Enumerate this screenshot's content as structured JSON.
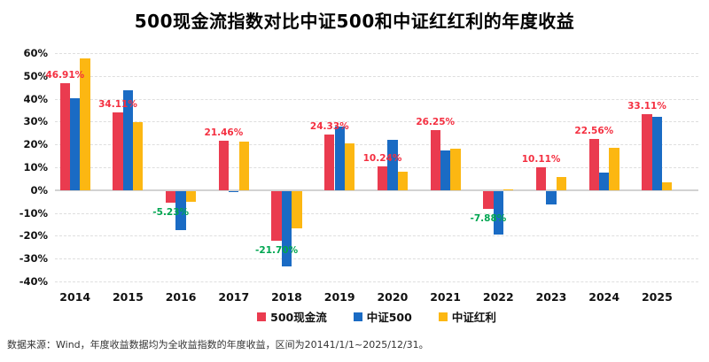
{
  "footnote": "数据来源：Wind，年度收益数据均为全收益指数的年度收益，区间为20141/1/1~2025/12/31。",
  "chart_data": {
    "type": "bar",
    "title": "500现金流指数对比中证500和中证红红利的年度收益",
    "categories": [
      "2014",
      "2015",
      "2016",
      "2017",
      "2018",
      "2019",
      "2020",
      "2021",
      "2022",
      "2023",
      "2024",
      "2025"
    ],
    "series": [
      {
        "name": "500现金流",
        "color": "#ea3b4f",
        "values": [
          46.91,
          34.11,
          -5.23,
          21.46,
          -21.7,
          24.33,
          10.24,
          26.25,
          -7.88,
          10.11,
          22.56,
          33.11
        ]
      },
      {
        "name": "中证500",
        "color": "#1a6bc4",
        "values": [
          40.3,
          43.9,
          -17.2,
          -0.2,
          -33.2,
          28.0,
          21.9,
          17.2,
          -19.0,
          -5.9,
          7.5,
          32.0
        ]
      },
      {
        "name": "中证红利",
        "color": "#fcb712",
        "values": [
          57.6,
          29.7,
          -4.9,
          21.3,
          -16.4,
          20.4,
          8.1,
          18.1,
          0.4,
          5.8,
          18.7,
          3.6
        ]
      }
    ],
    "value_labels": [
      "46.91%",
      "34.11%",
      "-5.23%",
      "21.46%",
      "-21.70%",
      "24.33%",
      "10.24%",
      "26.25%",
      "-7.88%",
      "10.11%",
      "22.56%",
      "33.11%"
    ],
    "value_label_series": 0,
    "label_color_up": "#f42f40",
    "label_color_down": "#00a651",
    "ylim": [
      -40,
      60
    ],
    "ytick_step": 10,
    "ytick_suffix": "%",
    "grid": "horizontal-dashed",
    "legend_position": "bottom"
  }
}
